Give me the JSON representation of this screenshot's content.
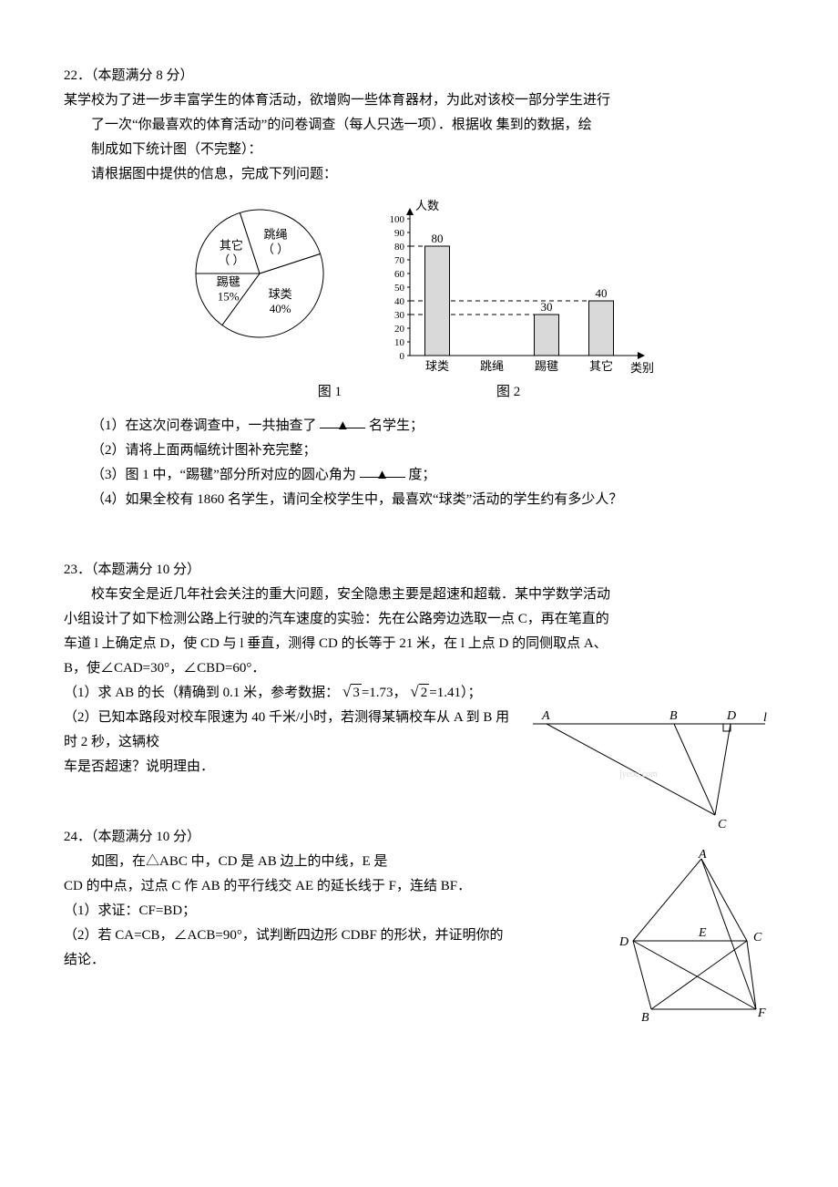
{
  "q22": {
    "heading": "22．（本题满分 8 分）",
    "intro1": "某学校为了进一步丰富学生的体育活动，欲增购一些体育器材，为此对该校一部分学生进行",
    "intro2": "了一次“你最喜欢的体育活动”的问卷调查（每人只选一项）．根据收  集到的数据，绘",
    "intro3": "制成如下统计图（不完整）：",
    "intro4": "请根据图中提供的信息，完成下列问题：",
    "pie": {
      "caption": "图 1",
      "colors": {
        "fill": "#ffffff",
        "stroke": "#000000"
      },
      "slices": [
        {
          "label": "球类",
          "pct_label": "40%",
          "pct": 40
        },
        {
          "label": "跳绳",
          "pct_label": "（  ）",
          "pct": 25
        },
        {
          "label": "其它",
          "pct_label": "（  ）",
          "pct": 20
        },
        {
          "label": "踢毽",
          "pct_label": "15%",
          "pct": 15
        }
      ]
    },
    "bar": {
      "caption": "图 2",
      "y_label": "人数",
      "x_label": "类别",
      "y_max": 100,
      "y_tick_step": 10,
      "bar_fill": "#d9d9d9",
      "bar_stroke": "#000000",
      "grid_dash": "5,4",
      "categories": [
        "球类",
        "跳绳",
        "踢毽",
        "其它"
      ],
      "values": [
        80,
        null,
        30,
        40
      ],
      "value_labels": [
        "80",
        "",
        "30",
        "40"
      ]
    },
    "sub1_a": "（1）在这次问卷调查中，一共抽查了",
    "sub1_b": "名学生；",
    "sub2": "（2）请将上面两幅统计图补充完整；",
    "sub3_a": "（3）图 1 中，“踢毽”部分所对应的圆心角为",
    "sub3_b": "度；",
    "sub4": "（4）如果全校有 1860 名学生，请问全校学生中，最喜欢“球类”活动的学生约有多少人？",
    "blank_mark": "▲"
  },
  "q23": {
    "heading": "23．（本题满分 10 分）",
    "p1": "校车安全是近几年社会关注的重大问题，安全隐患主要是超速和超载．某中学数学活动",
    "p2": "小组设计了如下检测公路上行驶的汽车速度的实验：先在公路旁边选取一点 C，再在笔直的",
    "p3": "车道 l 上确定点 D，使 CD 与 l 垂直，测得 CD 的长等于 21 米，在 l 上点 D 的同侧取点 A、",
    "p4": "B，使∠CAD=30°，∠CBD=60°．",
    "sub1_a": "（1）求 AB 的长（精确到 0.1 米，参考数据：",
    "sqrt3": "3",
    "sqrt3_val": "=1.73，",
    "sqrt2": "2",
    "sqrt2_val": "=1.41）；",
    "sub2a": "（2）已知本路段对校车限速为 40 千米/小时，若测得某辆校车从 A 到 B 用时 2 秒，这辆校",
    "sub2b": "车是否超速？说明理由．",
    "diagram": {
      "labels": {
        "A": "A",
        "B": "B",
        "C": "C",
        "D": "D",
        "l": "l"
      },
      "line_color": "#000000",
      "watermark": "jyeoo.com"
    }
  },
  "q24": {
    "heading": "24．（本题满分 10 分）",
    "p1": "如图，在△ABC 中，CD 是 AB 边上的中线，E 是",
    "p2": "CD 的中点，过点 C 作 AB 的平行线交 AE 的延长线于 F，连结 BF．",
    "sub1": "（1）求证：CF=BD；",
    "sub2": "（2）若 CA=CB，∠ACB=90°，试判断四边形 CDBF 的形状，并证明你的",
    "sub2b": "结论．",
    "diagram": {
      "labels": {
        "A": "A",
        "B": "B",
        "C": "C",
        "D": "D",
        "E": "E",
        "F": "F"
      },
      "line_color": "#000000"
    }
  }
}
